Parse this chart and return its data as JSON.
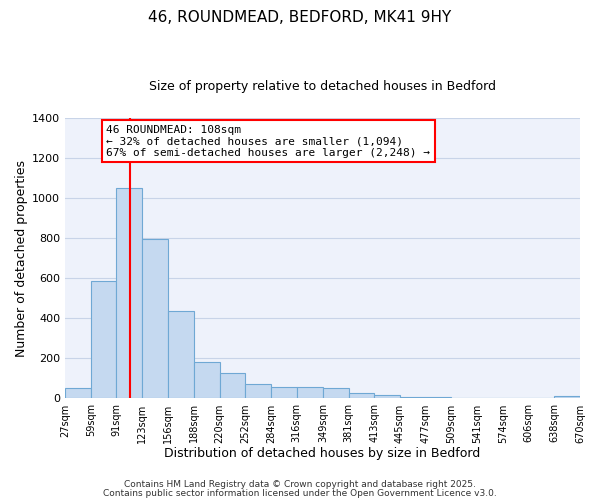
{
  "title": "46, ROUNDMEAD, BEDFORD, MK41 9HY",
  "subtitle": "Size of property relative to detached houses in Bedford",
  "xlabel": "Distribution of detached houses by size in Bedford",
  "ylabel": "Number of detached properties",
  "bar_color": "#c5d9f0",
  "bar_edge_color": "#6fa8d4",
  "background_color": "#eef2fb",
  "grid_color": "#c8d4e8",
  "vline_x": 108,
  "vline_color": "red",
  "annotation_title": "46 ROUNDMEAD: 108sqm",
  "annotation_line1": "← 32% of detached houses are smaller (1,094)",
  "annotation_line2": "67% of semi-detached houses are larger (2,248) →",
  "annotation_box_color": "red",
  "bins": [
    27,
    59,
    91,
    123,
    156,
    188,
    220,
    252,
    284,
    316,
    349,
    381,
    413,
    445,
    477,
    509,
    541,
    574,
    606,
    638,
    670
  ],
  "values": [
    50,
    585,
    1050,
    795,
    435,
    180,
    125,
    70,
    55,
    55,
    50,
    25,
    15,
    8,
    5,
    1,
    0,
    0,
    0,
    10
  ],
  "ylim": [
    0,
    1400
  ],
  "yticks": [
    0,
    200,
    400,
    600,
    800,
    1000,
    1200,
    1400
  ],
  "tick_labels": [
    "27sqm",
    "59sqm",
    "91sqm",
    "123sqm",
    "156sqm",
    "188sqm",
    "220sqm",
    "252sqm",
    "284sqm",
    "316sqm",
    "349sqm",
    "381sqm",
    "413sqm",
    "445sqm",
    "477sqm",
    "509sqm",
    "541sqm",
    "574sqm",
    "606sqm",
    "638sqm",
    "670sqm"
  ],
  "footer1": "Contains HM Land Registry data © Crown copyright and database right 2025.",
  "footer2": "Contains public sector information licensed under the Open Government Licence v3.0."
}
